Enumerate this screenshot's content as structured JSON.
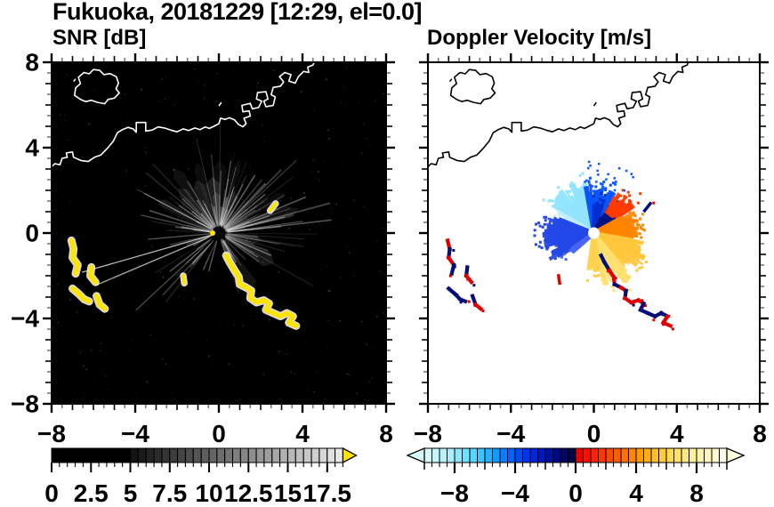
{
  "title": "Fukuoka, 20181229 [12:29, el=0.0]",
  "panels": {
    "snr": {
      "title": "SNR [dB]"
    },
    "doppler": {
      "title": "Doppler Velocity [m/s]"
    }
  },
  "axis": {
    "xlim": [
      -8,
      8
    ],
    "ylim": [
      -8,
      8
    ],
    "minor_step": 0.5,
    "x_tick_values": [
      -8,
      -4,
      0,
      4,
      8
    ],
    "x_tick_labels": [
      "−8",
      "−4",
      "0",
      "4",
      "8"
    ],
    "y_tick_values": [
      8,
      4,
      0,
      -4,
      -8
    ],
    "y_tick_labels": [
      "8",
      "4",
      "0",
      "−4",
      "−8"
    ]
  },
  "chart_data": [
    {
      "type": "heatmap",
      "panel": "snr",
      "title": "SNR [dB]",
      "units": "dB",
      "xlim": [
        -8,
        8
      ],
      "ylim": [
        -8,
        8
      ],
      "background": "#000000",
      "coast_color": "#ffffff",
      "radar_center": [
        0,
        0
      ],
      "clutter_color": "#ffffff",
      "strong_echo_color": "#ffe400",
      "colorbar": {
        "tick_labels": [
          "0",
          "2.5",
          "5",
          "7.5",
          "10",
          "12.5",
          "15",
          "17.5"
        ],
        "tick_values": [
          0,
          2.5,
          5,
          7.5,
          10,
          12.5,
          15,
          17.5
        ],
        "range": [
          0,
          18.5
        ],
        "black_below": 5,
        "ramp": [
          "#000000",
          "#f0f0f0"
        ],
        "over_arrow_color": "#ffe400"
      }
    },
    {
      "type": "heatmap",
      "panel": "doppler",
      "title": "Doppler Velocity [m/s]",
      "units": "m/s",
      "xlim": [
        -8,
        8
      ],
      "ylim": [
        -8,
        8
      ],
      "background": "#ffffff",
      "coast_color": "#000000",
      "radar_center": [
        0,
        0
      ],
      "colorbar": {
        "tick_labels": [
          "−8",
          "−4",
          "0",
          "4",
          "8"
        ],
        "tick_values": [
          -8,
          -4,
          0,
          4,
          8
        ],
        "range": [
          -10,
          10
        ],
        "under_arrow_color": "#d6fbff",
        "over_arrow_color": "#fffde2",
        "negative_stops": [
          [
            0,
            "#d6fbff"
          ],
          [
            3,
            "#a6efff"
          ],
          [
            6,
            "#57d7ff"
          ],
          [
            9,
            "#0f9cff"
          ],
          [
            11,
            "#0063ff"
          ],
          [
            13,
            "#0034f2"
          ],
          [
            15,
            "#0018c0"
          ],
          [
            17,
            "#000a80"
          ],
          [
            19,
            "#000445"
          ]
        ],
        "positive_stops": [
          [
            0,
            "#ee0000"
          ],
          [
            2,
            "#ff2200"
          ],
          [
            4,
            "#ff4a00"
          ],
          [
            6,
            "#ff7200"
          ],
          [
            8,
            "#ff9a00"
          ],
          [
            10,
            "#ffc022"
          ],
          [
            12,
            "#ffda55"
          ],
          [
            14,
            "#ffe985"
          ],
          [
            16,
            "#fff3ae"
          ],
          [
            18,
            "#fff9cf"
          ],
          [
            19,
            "#fffde2"
          ]
        ]
      },
      "velocity_sectors": [
        {
          "az0": 100,
          "az1": 148,
          "r": 2.7,
          "color": "#93e4ff"
        },
        {
          "az0": 148,
          "az1": 158,
          "r": 2.1,
          "color": "#bfefff"
        },
        {
          "az0": 62,
          "az1": 100,
          "r": 2.35,
          "color": "#0a55ff"
        },
        {
          "az0": 72,
          "az1": 92,
          "r": 1.5,
          "color": "#0030cf"
        },
        {
          "az0": 30,
          "az1": 62,
          "r": 1.55,
          "color": "#001484"
        },
        {
          "az0": 33,
          "az1": 60,
          "r": 2.4,
          "r_in": 1.35,
          "color": "#ff3c00"
        },
        {
          "az0": -8,
          "az1": 30,
          "r": 2.25,
          "color": "#ff8400"
        },
        {
          "az0": -50,
          "az1": -8,
          "r": 2.85,
          "color": "#ffc63c"
        },
        {
          "az0": -80,
          "az1": -50,
          "r": 2.9,
          "color": "#ffe070"
        },
        {
          "az0": -100,
          "az1": -80,
          "r": 1.9,
          "color": "#ffd34f"
        },
        {
          "az0": 158,
          "az1": 214,
          "r": 2.5,
          "color": "#2448e8"
        },
        {
          "az0": 214,
          "az1": 225,
          "r": 1.5,
          "color": "#4a66f0"
        }
      ],
      "ship_echo_colors": [
        "#001078",
        "#e00000"
      ]
    }
  ],
  "map": {
    "island": [
      [
        -6.6,
        6.25
      ],
      [
        -6.9,
        6.45
      ],
      [
        -6.85,
        6.8
      ],
      [
        -6.62,
        7.0
      ],
      [
        -6.72,
        7.3
      ],
      [
        -6.45,
        7.52
      ],
      [
        -6.2,
        7.46
      ],
      [
        -6.0,
        7.66
      ],
      [
        -5.7,
        7.62
      ],
      [
        -5.5,
        7.42
      ],
      [
        -5.2,
        7.47
      ],
      [
        -4.9,
        7.32
      ],
      [
        -4.8,
        7.02
      ],
      [
        -4.92,
        6.76
      ],
      [
        -4.76,
        6.56
      ],
      [
        -5.0,
        6.32
      ],
      [
        -5.3,
        6.26
      ],
      [
        -5.46,
        6.06
      ],
      [
        -5.8,
        6.12
      ],
      [
        -6.1,
        6.22
      ],
      [
        -6.36,
        6.16
      ],
      [
        -6.6,
        6.25
      ]
    ],
    "mainland": [
      [
        -8.1,
        3.0
      ],
      [
        -7.85,
        3.25
      ],
      [
        -7.6,
        3.2
      ],
      [
        -7.5,
        3.5
      ],
      [
        -7.25,
        3.55
      ],
      [
        -7.3,
        3.75
      ],
      [
        -7.0,
        3.8
      ],
      [
        -6.95,
        3.55
      ],
      [
        -6.6,
        3.4
      ],
      [
        -6.25,
        3.35
      ],
      [
        -5.95,
        3.55
      ],
      [
        -5.65,
        3.65
      ],
      [
        -5.35,
        3.95
      ],
      [
        -5.05,
        4.3
      ],
      [
        -4.85,
        4.7
      ],
      [
        -4.6,
        4.85
      ],
      [
        -4.35,
        4.95
      ],
      [
        -4.1,
        4.88
      ],
      [
        -3.95,
        4.72
      ],
      [
        -3.95,
        5.18
      ],
      [
        -3.5,
        5.18
      ],
      [
        -3.5,
        4.78
      ],
      [
        -3.2,
        4.82
      ],
      [
        -2.9,
        4.97
      ],
      [
        -2.6,
        4.92
      ],
      [
        -2.3,
        4.82
      ],
      [
        -2.0,
        4.74
      ],
      [
        -1.7,
        4.88
      ],
      [
        -1.45,
        4.8
      ],
      [
        -1.15,
        4.92
      ],
      [
        -0.9,
        4.84
      ],
      [
        -0.65,
        4.97
      ],
      [
        -0.45,
        4.9
      ],
      [
        -0.2,
        5.02
      ],
      [
        0.0,
        5.12
      ],
      [
        0.08,
        5.38
      ],
      [
        0.3,
        5.32
      ],
      [
        0.5,
        5.4
      ],
      [
        0.75,
        5.3
      ],
      [
        0.95,
        5.08
      ],
      [
        1.15,
        4.98
      ],
      [
        1.3,
        5.12
      ],
      [
        1.2,
        5.38
      ],
      [
        1.5,
        5.48
      ],
      [
        1.45,
        5.72
      ],
      [
        1.15,
        5.68
      ],
      [
        1.1,
        5.98
      ],
      [
        1.5,
        6.08
      ],
      [
        1.6,
        5.82
      ],
      [
        1.9,
        5.88
      ],
      [
        2.05,
        6.18
      ],
      [
        1.8,
        6.28
      ],
      [
        1.85,
        6.58
      ],
      [
        2.25,
        6.62
      ],
      [
        2.35,
        6.28
      ],
      [
        2.15,
        6.18
      ],
      [
        2.25,
        5.92
      ],
      [
        2.6,
        5.98
      ],
      [
        2.7,
        6.38
      ],
      [
        2.5,
        6.48
      ],
      [
        2.6,
        6.82
      ],
      [
        2.95,
        6.88
      ],
      [
        3.1,
        7.08
      ],
      [
        2.9,
        7.32
      ],
      [
        3.15,
        7.52
      ],
      [
        3.45,
        7.42
      ],
      [
        3.35,
        7.12
      ],
      [
        3.65,
        7.02
      ],
      [
        3.8,
        7.32
      ],
      [
        4.05,
        7.57
      ],
      [
        4.3,
        7.52
      ],
      [
        4.25,
        7.77
      ],
      [
        4.5,
        7.87
      ],
      [
        4.62,
        8.15
      ]
    ],
    "islets": [
      [
        [
          -6.95,
          7.1
        ],
        [
          -6.85,
          7.22
        ]
      ],
      [
        [
          0.0,
          5.95
        ],
        [
          0.12,
          6.12
        ]
      ]
    ]
  },
  "ship_echoes": {
    "chain_se": [
      [
        0.35,
        -1.05
      ],
      [
        0.5,
        -1.35
      ],
      [
        0.75,
        -1.75
      ],
      [
        0.95,
        -2.05
      ],
      [
        1.0,
        -2.4
      ],
      [
        1.3,
        -2.55
      ],
      [
        1.55,
        -2.7
      ],
      [
        1.5,
        -3.05
      ],
      [
        1.8,
        -3.25
      ],
      [
        2.15,
        -3.15
      ],
      [
        2.4,
        -3.3
      ],
      [
        2.25,
        -3.6
      ],
      [
        2.6,
        -3.75
      ],
      [
        2.95,
        -3.9
      ],
      [
        3.25,
        -3.75
      ],
      [
        3.55,
        -3.9
      ],
      [
        3.35,
        -4.2
      ],
      [
        3.7,
        -4.35
      ]
    ],
    "west_blobs": [
      [
        [
          -7.05,
          -0.35
        ],
        [
          -6.95,
          -0.75
        ],
        [
          -7.0,
          -1.15
        ],
        [
          -6.75,
          -1.5
        ],
        [
          -6.85,
          -1.9
        ]
      ],
      [
        [
          -6.1,
          -1.6
        ],
        [
          -6.15,
          -2.0
        ],
        [
          -5.9,
          -2.3
        ]
      ],
      [
        [
          -7.0,
          -2.6
        ],
        [
          -6.7,
          -2.85
        ],
        [
          -6.45,
          -3.1
        ],
        [
          -6.2,
          -3.2
        ]
      ],
      [
        [
          -5.85,
          -2.95
        ],
        [
          -5.7,
          -3.35
        ],
        [
          -5.45,
          -3.55
        ]
      ]
    ],
    "dashes": [
      [
        [
          -1.7,
          -2.0
        ],
        [
          -1.65,
          -2.35
        ]
      ],
      [
        [
          2.45,
          1.05
        ],
        [
          2.72,
          1.38
        ]
      ]
    ]
  }
}
